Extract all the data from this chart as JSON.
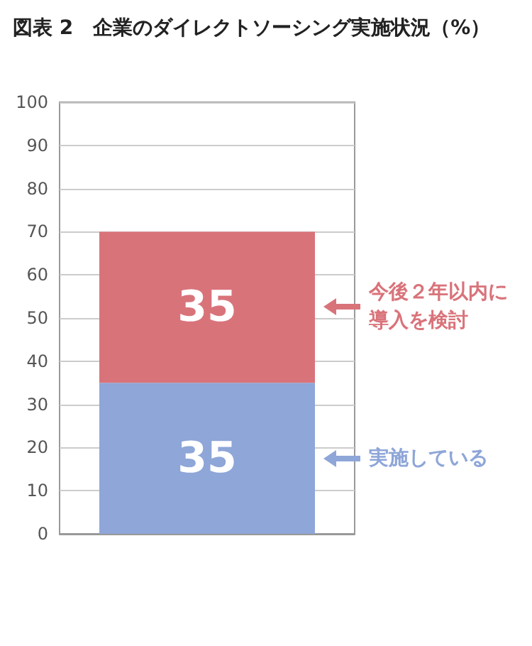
{
  "chart_data": {
    "type": "bar",
    "title": "図表 2　企業のダイレクトソーシング実施状況（%）",
    "categories": [
      null
    ],
    "stacked": true,
    "data_labels": true,
    "grid": "y",
    "legend": "right",
    "series": [
      {
        "name": "実施している",
        "color": "#8ea6d8",
        "values": [
          35
        ]
      },
      {
        "name": "今後２年以内に導入を検討",
        "color": "#d9737a",
        "values": [
          35
        ]
      }
    ],
    "ylim": [
      0,
      100
    ],
    "yticks": [
      0,
      10,
      20,
      30,
      40,
      50,
      60,
      70,
      80,
      90,
      100
    ]
  }
}
